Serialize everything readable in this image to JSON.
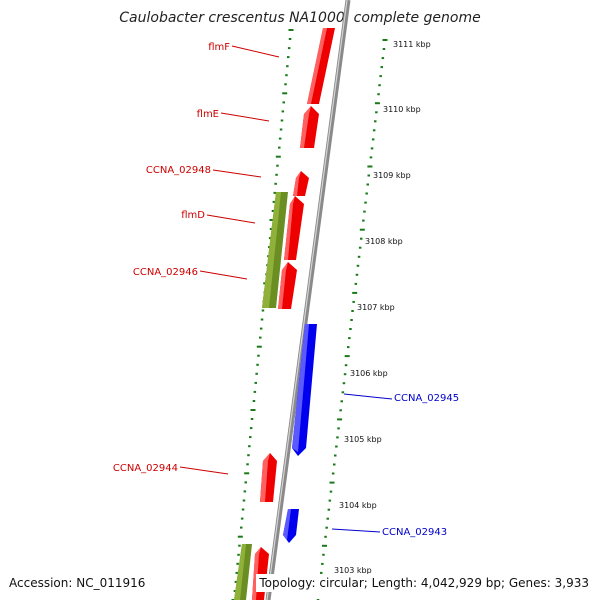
{
  "title": "Caulobacter crescentus NA1000, complete genome",
  "accession": "Accession: NC_011916",
  "summary": "Topology: circular; Length: 4,042,929 bp; Genes: 3,933",
  "colors": {
    "backbone": "#8a8a8a",
    "forward_gene": "#ee0000",
    "reverse_gene": "#0000ee",
    "other_feature": "#6b8e23",
    "gc_ticks": "#1a7a1a",
    "label_red": "#cc0000",
    "label_blue": "#0000cc"
  },
  "kbp_ticks": [
    {
      "label": "3103 kbp"
    },
    {
      "label": "3104 kbp"
    },
    {
      "label": "3105 kbp"
    },
    {
      "label": "3106 kbp"
    },
    {
      "label": "3107 kbp"
    },
    {
      "label": "3108 kbp"
    },
    {
      "label": "3109 kbp"
    },
    {
      "label": "3110 kbp"
    },
    {
      "label": "3111 kbp"
    }
  ],
  "gene_labels": [
    {
      "text": "flmF"
    },
    {
      "text": "flmE"
    },
    {
      "text": "CCNA_02948"
    },
    {
      "text": "flmD"
    },
    {
      "text": "CCNA_02946"
    },
    {
      "text": "CCNA_02945"
    },
    {
      "text": "CCNA_02944"
    },
    {
      "text": "CCNA_02943"
    }
  ]
}
